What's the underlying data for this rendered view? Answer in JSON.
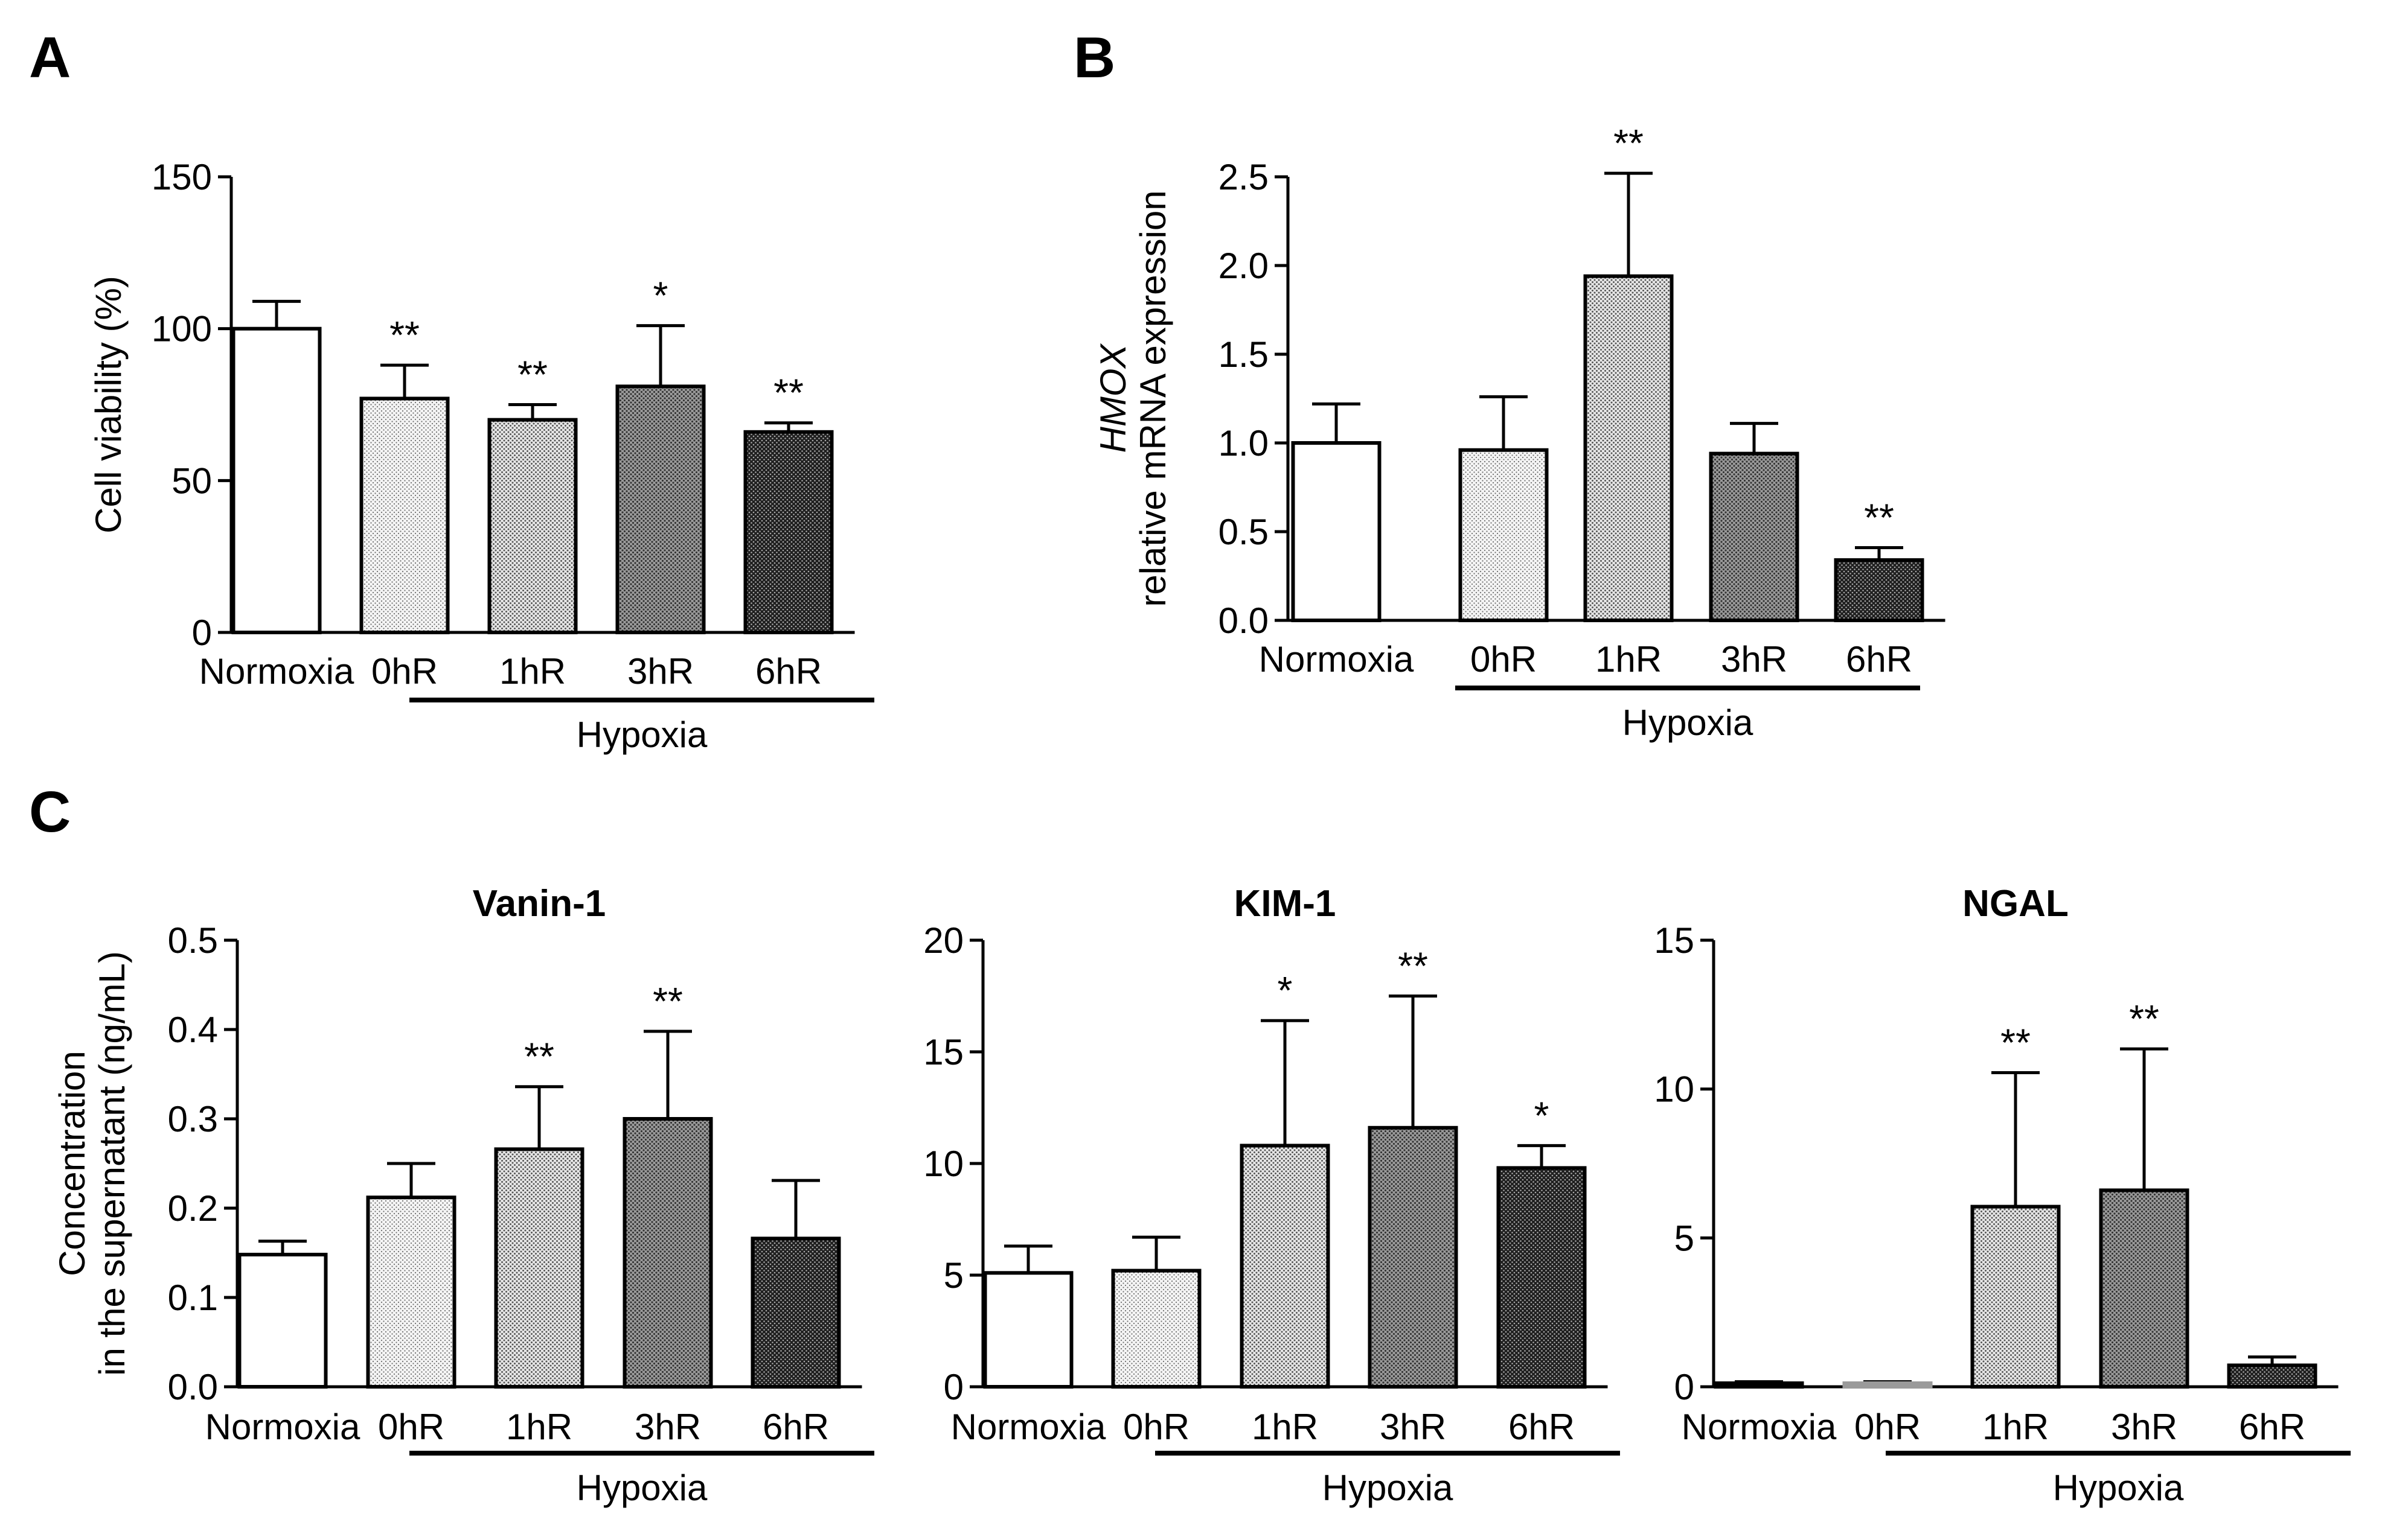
{
  "figure": {
    "panels": [
      {
        "letter": "A"
      },
      {
        "letter": "B"
      },
      {
        "letter": "C"
      }
    ]
  },
  "chart_data": [
    {
      "panel": "A",
      "type": "bar",
      "title": "",
      "ylabel": "Cell viability (%)",
      "ylim": [
        0,
        150
      ],
      "yticks": [
        0,
        50,
        100,
        150
      ],
      "ytick_labels": [
        "0",
        "50",
        "100",
        "150"
      ],
      "categories": [
        "Normoxia",
        "0hR",
        "1hR",
        "3hR",
        "6hR"
      ],
      "values": [
        100,
        77,
        70,
        81,
        66
      ],
      "errors": [
        9,
        11,
        5,
        20,
        3
      ],
      "significance": [
        "",
        "**",
        "**",
        "*",
        "**"
      ],
      "patterns": [
        "white",
        "p0",
        "p1",
        "p3",
        "p6"
      ],
      "group_label": "Hypoxia",
      "group_range": [
        1,
        4
      ]
    },
    {
      "panel": "B",
      "type": "bar",
      "title": "",
      "ylabel_italic": "HMOX",
      "ylabel": "relative mRNA expression",
      "ylim": [
        0,
        2.5
      ],
      "yticks": [
        0,
        0.5,
        1.0,
        1.5,
        2.0,
        2.5
      ],
      "ytick_labels": [
        "0.0",
        "0.5",
        "1.0",
        "1.5",
        "2.0",
        "2.5"
      ],
      "categories": [
        "Normoxia",
        "0hR",
        "1hR",
        "3hR",
        "6hR"
      ],
      "values": [
        1.0,
        0.96,
        1.94,
        0.94,
        0.34
      ],
      "errors": [
        0.22,
        0.3,
        0.58,
        0.17,
        0.07
      ],
      "significance": [
        "",
        "",
        "**",
        "",
        "**"
      ],
      "patterns": [
        "white",
        "p0",
        "p1",
        "p3",
        "p6"
      ],
      "group_label": "Hypoxia",
      "group_range": [
        1,
        4
      ]
    },
    {
      "panel": "C",
      "type": "bar",
      "title": "Vanin-1",
      "ylabel": "Concentration",
      "ylabel2": "in  the supernatant (ng/mL)",
      "ylim": [
        0,
        0.5
      ],
      "yticks": [
        0,
        0.1,
        0.2,
        0.3,
        0.4,
        0.5
      ],
      "ytick_labels": [
        "0.0",
        "0.1",
        "0.2",
        "0.3",
        "0.4",
        "0.5"
      ],
      "categories": [
        "Normoxia",
        "0hR",
        "1hR",
        "3hR",
        "6hR"
      ],
      "values": [
        0.148,
        0.212,
        0.266,
        0.3,
        0.166
      ],
      "errors": [
        0.015,
        0.038,
        0.07,
        0.098,
        0.065
      ],
      "significance": [
        "",
        "",
        "**",
        "**",
        ""
      ],
      "patterns": [
        "white",
        "p0",
        "p1",
        "p3",
        "p6"
      ],
      "group_label": "Hypoxia",
      "group_range": [
        1,
        4
      ]
    },
    {
      "panel": "C",
      "type": "bar",
      "title": "KIM-1",
      "ylim": [
        0,
        20
      ],
      "yticks": [
        0,
        5,
        10,
        15,
        20
      ],
      "ytick_labels": [
        "0",
        "5",
        "10",
        "15",
        "20"
      ],
      "categories": [
        "Normoxia",
        "0hR",
        "1hR",
        "3hR",
        "6hR"
      ],
      "values": [
        5.1,
        5.2,
        10.8,
        11.6,
        9.8
      ],
      "errors": [
        1.2,
        1.5,
        5.6,
        5.9,
        1.0
      ],
      "significance": [
        "",
        "",
        "*",
        "**",
        "*"
      ],
      "patterns": [
        "white",
        "p0",
        "p1",
        "p3",
        "p6"
      ],
      "group_label": "Hypoxia",
      "group_range": [
        1,
        4
      ]
    },
    {
      "panel": "C",
      "type": "bar",
      "title": "NGAL",
      "ylim": [
        0,
        15
      ],
      "yticks": [
        0,
        5,
        10,
        15
      ],
      "ytick_labels": [
        "0",
        "5",
        "10",
        "15"
      ],
      "categories": [
        "Normoxia",
        "0hR",
        "1hR",
        "3hR",
        "6hR"
      ],
      "values": [
        0.12,
        0.12,
        6.05,
        6.6,
        0.72
      ],
      "errors": [
        0.05,
        0.05,
        4.5,
        4.75,
        0.28
      ],
      "significance": [
        "",
        "",
        "**",
        "**",
        ""
      ],
      "patterns": [
        "white",
        "gray",
        "p1",
        "p3",
        "p6"
      ],
      "group_label": "Hypoxia",
      "group_range": [
        1,
        4
      ]
    }
  ]
}
